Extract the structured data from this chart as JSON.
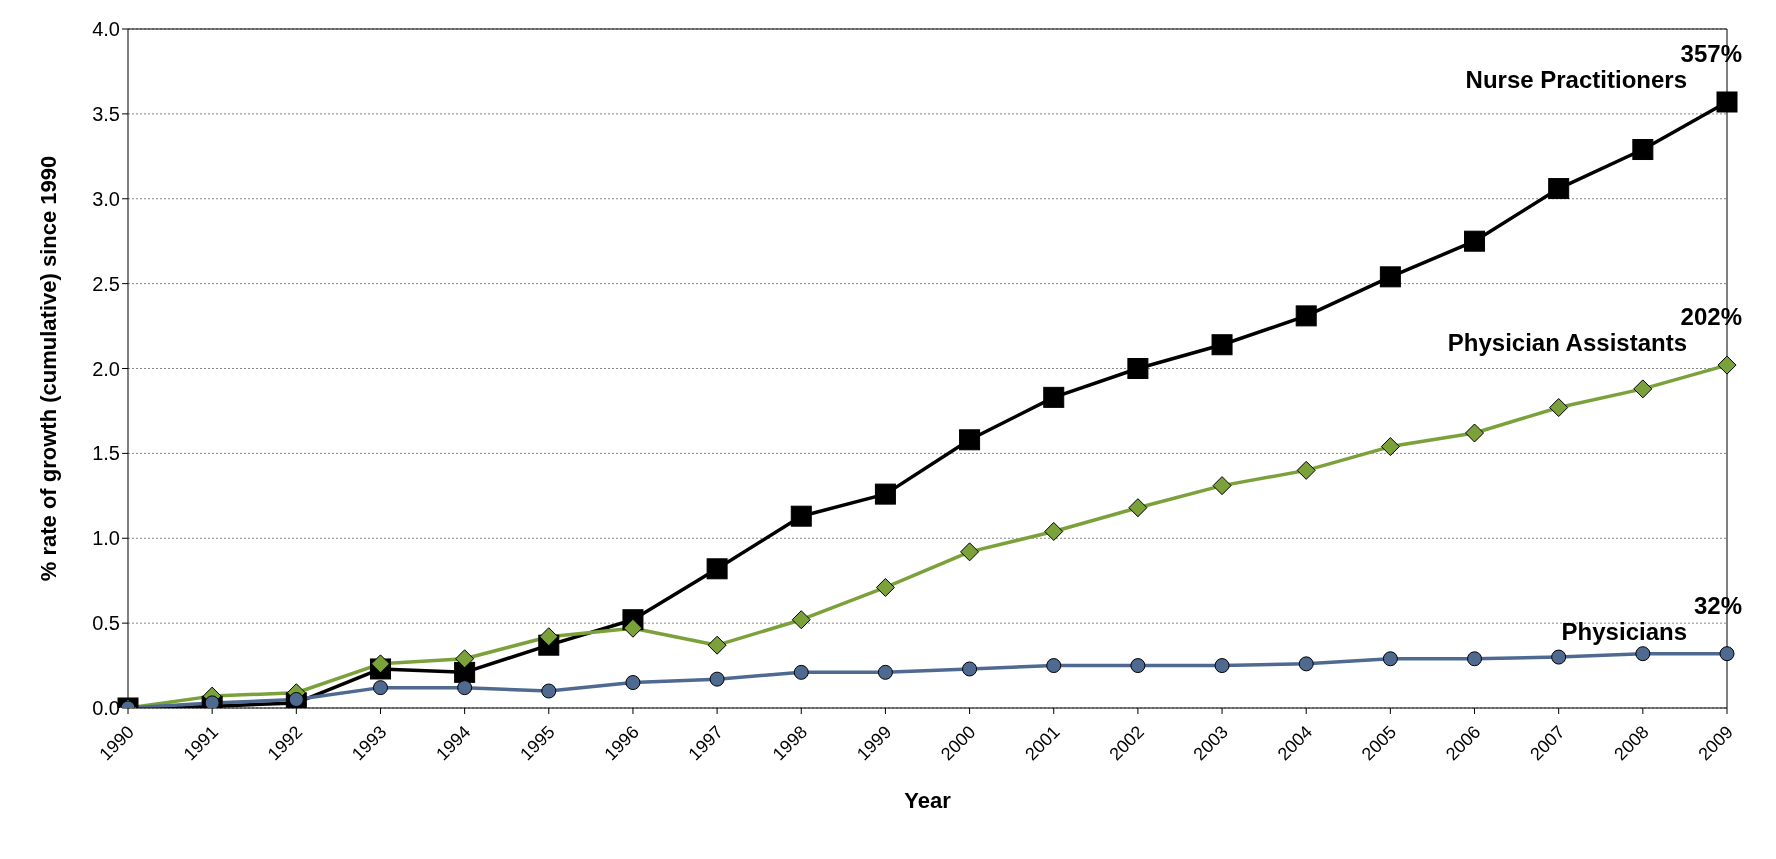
{
  "chart_data": {
    "type": "line",
    "xlabel": "Year",
    "ylabel": "% rate of growth (cumulative) since 1990",
    "categories": [
      "1990",
      "1991",
      "1992",
      "1993",
      "1994",
      "1995",
      "1996",
      "1997",
      "1998",
      "1999",
      "2000",
      "2001",
      "2002",
      "2003",
      "2004",
      "2005",
      "2006",
      "2007",
      "2008",
      "2009"
    ],
    "series": [
      {
        "name": "Nurse Practitioners",
        "color": "#000000",
        "marker": "square",
        "values": [
          0,
          0.01,
          0.03,
          0.23,
          0.21,
          0.37,
          0.52,
          0.82,
          1.13,
          1.26,
          1.58,
          1.83,
          2.0,
          2.14,
          2.31,
          2.54,
          2.75,
          3.06,
          3.29,
          3.57
        ]
      },
      {
        "name": "Physician Assistants",
        "color": "#7ba13a",
        "marker": "diamond",
        "values": [
          0,
          0.07,
          0.09,
          0.26,
          0.29,
          0.42,
          0.47,
          0.37,
          0.52,
          0.71,
          0.92,
          1.04,
          1.18,
          1.31,
          1.4,
          1.54,
          1.62,
          1.77,
          1.88,
          2.02
        ]
      },
      {
        "name": "Physicians",
        "color": "#4f6a91",
        "marker": "circle",
        "values": [
          0,
          0.03,
          0.05,
          0.12,
          0.12,
          0.1,
          0.15,
          0.17,
          0.21,
          0.21,
          0.23,
          0.25,
          0.25,
          0.25,
          0.26,
          0.29,
          0.29,
          0.3,
          0.32,
          0.32
        ]
      }
    ],
    "annotations": [
      {
        "text": "357%",
        "x": "2009",
        "y": 3.57
      },
      {
        "text": "202%",
        "x": "2009",
        "y": 2.02
      },
      {
        "text": "32%",
        "x": "2009",
        "y": 0.32
      }
    ],
    "ylim": [
      0,
      4
    ],
    "yticks": [
      {
        "value": 0,
        "label": "0.0"
      },
      {
        "value": 0.5,
        "label": "0.5"
      },
      {
        "value": 1,
        "label": "1.0"
      },
      {
        "value": 1.5,
        "label": "1.5"
      },
      {
        "value": 2,
        "label": "2.0"
      },
      {
        "value": 2.5,
        "label": "2.5"
      },
      {
        "value": 3,
        "label": "3.0"
      },
      {
        "value": 3.5,
        "label": "3.5"
      },
      {
        "value": 4,
        "label": "4.0"
      }
    ],
    "grid": "y",
    "legend": false,
    "line_style": "solid"
  }
}
